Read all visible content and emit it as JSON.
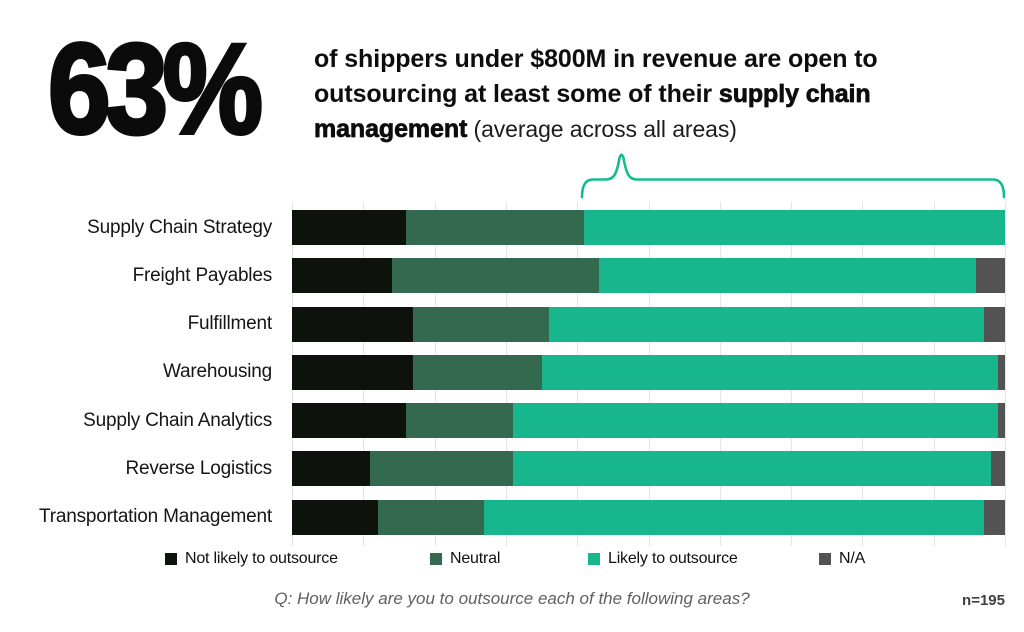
{
  "header": {
    "stat": "63%",
    "subtitle_lead": "of shippers under $800M in revenue are open to outsourcing at least some of their ",
    "subtitle_emphasis": "supply chain management",
    "subtitle_note": " (average across all areas)"
  },
  "chart_data": {
    "type": "bar",
    "orientation": "horizontal",
    "stacked": true,
    "units": "percent",
    "xlim": [
      0,
      100
    ],
    "gridline_step": 10,
    "grid": true,
    "axis_tick_labels_shown": false,
    "legend_position": "bottom",
    "categories": [
      "Supply Chain Strategy",
      "Freight Payables",
      "Fulfillment",
      "Warehousing",
      "Supply Chain Analytics",
      "Reverse Logistics",
      "Transportation Management"
    ],
    "series": [
      {
        "name": "Not likely to outsource",
        "color": "#0d120d",
        "values": [
          16,
          14,
          17,
          17,
          16,
          11,
          12
        ]
      },
      {
        "name": "Neutral",
        "color": "#33694e",
        "values": [
          25,
          29,
          19,
          18,
          15,
          20,
          15
        ]
      },
      {
        "name": "Likely to outsource",
        "color": "#17b68c",
        "values": [
          59,
          53,
          61,
          64,
          68,
          67,
          70
        ]
      },
      {
        "name": "N/A",
        "color": "#535353",
        "values": [
          0,
          4,
          3,
          1,
          1,
          2,
          3
        ]
      }
    ],
    "annotation": {
      "type": "brace",
      "color": "#13bd8f",
      "meaning": "Likely to outsource portion, average 63% across all areas"
    }
  },
  "footer": {
    "question": "Q: How likely are you to outsource each of the following areas?",
    "sample_size": "n=195"
  }
}
